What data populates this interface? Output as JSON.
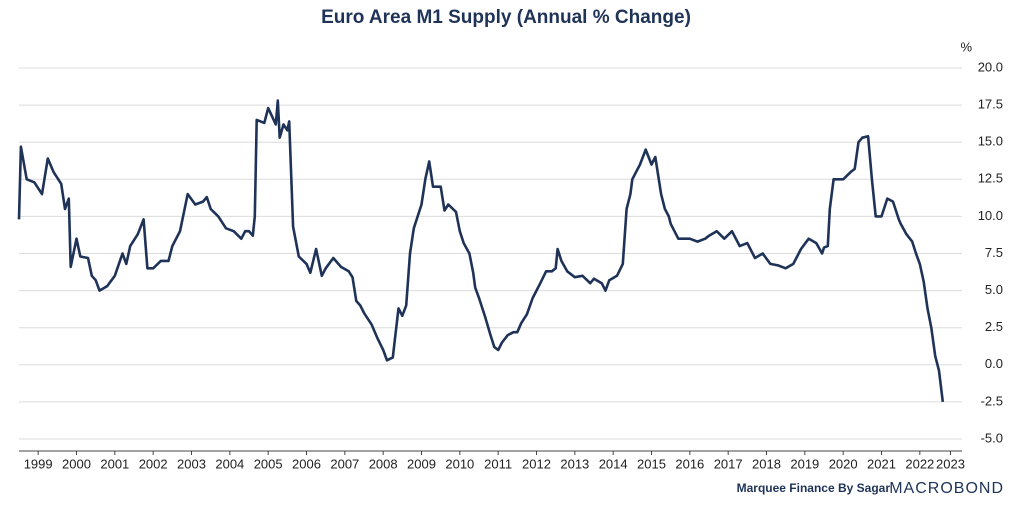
{
  "chart_data": {
    "type": "line",
    "title": "Euro Area M1 Supply (Annual % Change)",
    "y_unit": "%",
    "source": "Marquee Finance By Sagar",
    "brand": "MACROBOND",
    "x": [
      1999.0,
      1999.05,
      1999.2,
      1999.4,
      1999.6,
      1999.75,
      1999.9,
      2000.1,
      2000.2,
      2000.3,
      2000.35,
      2000.5,
      2000.6,
      2000.8,
      2000.9,
      2001.0,
      2001.1,
      2001.3,
      2001.5,
      2001.7,
      2001.8,
      2001.9,
      2002.1,
      2002.25,
      2002.35,
      2002.5,
      2002.7,
      2002.9,
      2003.0,
      2003.2,
      2003.4,
      2003.6,
      2003.8,
      2003.9,
      2004.0,
      2004.2,
      2004.4,
      2004.6,
      2004.8,
      2004.9,
      2005.0,
      2005.1,
      2005.15,
      2005.2,
      2005.4,
      2005.5,
      2005.7,
      2005.75,
      2005.8,
      2005.9,
      2006.0,
      2006.05,
      2006.15,
      2006.3,
      2006.5,
      2006.6,
      2006.75,
      2006.9,
      2007.0,
      2007.2,
      2007.4,
      2007.6,
      2007.7,
      2007.8,
      2007.9,
      2008.0,
      2008.2,
      2008.35,
      2008.5,
      2008.6,
      2008.75,
      2008.9,
      2009.0,
      2009.1,
      2009.2,
      2009.3,
      2009.5,
      2009.6,
      2009.7,
      2009.8,
      2010.0,
      2010.1,
      2010.2,
      2010.4,
      2010.5,
      2010.6,
      2010.75,
      2010.85,
      2010.9,
      2011.0,
      2011.15,
      2011.3,
      2011.4,
      2011.5,
      2011.6,
      2011.75,
      2011.9,
      2012.0,
      2012.1,
      2012.25,
      2012.4,
      2012.5,
      2012.6,
      2012.75,
      2012.9,
      2013.0,
      2013.05,
      2013.15,
      2013.3,
      2013.5,
      2013.7,
      2013.9,
      2014.0,
      2014.2,
      2014.3,
      2014.4,
      2014.6,
      2014.75,
      2014.85,
      2014.95,
      2015.0,
      2015.2,
      2015.35,
      2015.5,
      2015.6,
      2015.75,
      2015.85,
      2015.95,
      2016.0,
      2016.2,
      2016.5,
      2016.7,
      2016.9,
      2017.0,
      2017.2,
      2017.4,
      2017.6,
      2017.8,
      2018.0,
      2018.2,
      2018.4,
      2018.6,
      2018.8,
      2019.0,
      2019.2,
      2019.4,
      2019.6,
      2019.8,
      2019.95,
      2020.0,
      2020.1,
      2020.15,
      2020.25,
      2020.5,
      2020.7,
      2020.8,
      2020.9,
      2021.0,
      2021.15,
      2021.25,
      2021.35,
      2021.5,
      2021.65,
      2021.8,
      2021.95,
      2022.0,
      2022.15,
      2022.3,
      2022.4,
      2022.5,
      2022.6,
      2022.7,
      2022.8,
      2022.9,
      2023.0,
      2023.1
    ],
    "series": [
      {
        "name": "Euro Area M1",
        "color": "#1f3358",
        "values": [
          9.8,
          14.7,
          12.5,
          12.3,
          11.5,
          13.9,
          13.0,
          12.2,
          10.5,
          11.2,
          6.6,
          8.5,
          7.3,
          7.2,
          6.0,
          5.7,
          5.0,
          5.3,
          6.0,
          7.5,
          6.8,
          8.0,
          8.8,
          9.8,
          6.5,
          6.5,
          7.0,
          7.0,
          8.0,
          9.0,
          11.5,
          10.8,
          11.0,
          11.3,
          10.5,
          10.0,
          9.2,
          9.0,
          8.5,
          9.0,
          9.0,
          8.7,
          10.0,
          16.5,
          16.3,
          17.3,
          16.2,
          17.8,
          15.3,
          16.2,
          15.8,
          16.4,
          9.3,
          7.3,
          6.8,
          6.2,
          7.8,
          6.0,
          6.5,
          7.2,
          6.6,
          6.3,
          5.9,
          4.3,
          4.0,
          3.5,
          2.7,
          1.8,
          1.0,
          0.3,
          0.5,
          3.8,
          3.3,
          4.0,
          7.5,
          9.2,
          10.8,
          12.5,
          13.7,
          12.0,
          12.0,
          10.4,
          10.8,
          10.3,
          9.0,
          8.2,
          7.5,
          6.2,
          5.2,
          4.5,
          3.3,
          2.0,
          1.2,
          1.0,
          1.5,
          2.0,
          2.2,
          2.2,
          2.8,
          3.4,
          4.5,
          5.0,
          5.5,
          6.3,
          6.3,
          6.5,
          7.8,
          7.0,
          6.3,
          5.9,
          6.0,
          5.5,
          5.8,
          5.5,
          5.0,
          5.7,
          6.0,
          6.8,
          10.5,
          11.5,
          12.5,
          13.5,
          14.5,
          13.5,
          14.0,
          11.5,
          10.5,
          10.0,
          9.5,
          8.5,
          8.5,
          8.3,
          8.5,
          8.7,
          9.0,
          8.5,
          9.0,
          8.0,
          8.2,
          7.2,
          7.5,
          6.8,
          6.7,
          6.5,
          6.8,
          7.8,
          8.5,
          8.2,
          7.5,
          7.9,
          8.0,
          10.5,
          12.5,
          12.5,
          13.0,
          13.2,
          15.0,
          15.3,
          15.4,
          12.5,
          10.0,
          10.0,
          11.2,
          11.0,
          9.8,
          9.5,
          8.8,
          8.3,
          7.5,
          6.8,
          5.6,
          3.8,
          2.5,
          0.6,
          -0.4,
          -2.5
        ]
      }
    ],
    "xlim": [
      1999,
      2023.6
    ],
    "xticks": [
      {
        "value": 1999.5,
        "label": "1999"
      },
      {
        "value": 2000.5,
        "label": "2000"
      },
      {
        "value": 2001.5,
        "label": "2001"
      },
      {
        "value": 2002.5,
        "label": "2002"
      },
      {
        "value": 2003.5,
        "label": "2003"
      },
      {
        "value": 2004.5,
        "label": "2004"
      },
      {
        "value": 2005.5,
        "label": "2005"
      },
      {
        "value": 2006.5,
        "label": "2006"
      },
      {
        "value": 2007.5,
        "label": "2007"
      },
      {
        "value": 2008.5,
        "label": "2008"
      },
      {
        "value": 2009.5,
        "label": "2009"
      },
      {
        "value": 2010.5,
        "label": "2010"
      },
      {
        "value": 2011.5,
        "label": "2011"
      },
      {
        "value": 2012.5,
        "label": "2012"
      },
      {
        "value": 2013.5,
        "label": "2013"
      },
      {
        "value": 2014.5,
        "label": "2014"
      },
      {
        "value": 2015.5,
        "label": "2015"
      },
      {
        "value": 2016.5,
        "label": "2016"
      },
      {
        "value": 2017.5,
        "label": "2017"
      },
      {
        "value": 2018.5,
        "label": "2018"
      },
      {
        "value": 2019.5,
        "label": "2019"
      },
      {
        "value": 2020.5,
        "label": "2020"
      },
      {
        "value": 2021.5,
        "label": "2021"
      },
      {
        "value": 2022.5,
        "label": "2022"
      },
      {
        "value": 2023.3,
        "label": "2023"
      }
    ],
    "ylim": [
      -5,
      20
    ],
    "yticks": [
      {
        "value": -5,
        "label": "-5.0"
      },
      {
        "value": -2.5,
        "label": "-2.5"
      },
      {
        "value": 0,
        "label": "0.0"
      },
      {
        "value": 2.5,
        "label": "2.5"
      },
      {
        "value": 5,
        "label": "5.0"
      },
      {
        "value": 7.5,
        "label": "7.5"
      },
      {
        "value": 10,
        "label": "10.0"
      },
      {
        "value": 12.5,
        "label": "12.5"
      },
      {
        "value": 15,
        "label": "15.0"
      },
      {
        "value": 17.5,
        "label": "17.5"
      },
      {
        "value": 20,
        "label": "20.0"
      }
    ],
    "grid": true
  }
}
